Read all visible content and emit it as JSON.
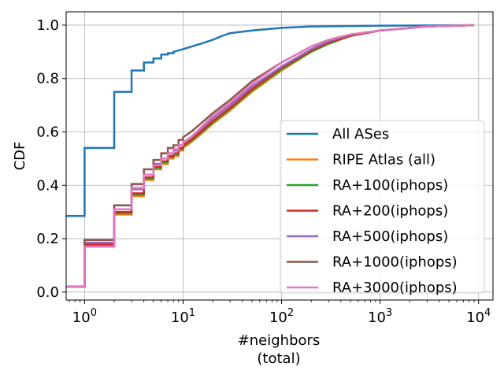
{
  "chart_data": {
    "type": "line",
    "xlabel": "#neighbors",
    "xlabel_line2": "(total)",
    "ylabel": "CDF",
    "xscale": "log",
    "xlim": [
      0.65,
      14000
    ],
    "ylim": [
      -0.03,
      1.05
    ],
    "grid": true,
    "legend_position": "bottom-right",
    "x_ticks": [
      {
        "value": 1,
        "base": "10",
        "exp": "0"
      },
      {
        "value": 10,
        "base": "10",
        "exp": "1"
      },
      {
        "value": 100,
        "base": "10",
        "exp": "2"
      },
      {
        "value": 1000,
        "base": "10",
        "exp": "3"
      },
      {
        "value": 10000,
        "base": "10",
        "exp": "4"
      }
    ],
    "y_ticks": [
      "0.0",
      "0.2",
      "0.4",
      "0.6",
      "0.8",
      "1.0"
    ],
    "series": [
      {
        "name": "All ASes",
        "color": "#1f77b4",
        "points": [
          [
            0.65,
            0.285
          ],
          [
            1,
            0.285
          ],
          [
            1,
            0.54
          ],
          [
            2,
            0.54
          ],
          [
            2,
            0.75
          ],
          [
            3,
            0.75
          ],
          [
            3,
            0.83
          ],
          [
            4,
            0.83
          ],
          [
            4,
            0.86
          ],
          [
            5,
            0.86
          ],
          [
            5,
            0.875
          ],
          [
            6,
            0.875
          ],
          [
            6,
            0.89
          ],
          [
            7,
            0.89
          ],
          [
            7,
            0.895
          ],
          [
            8,
            0.895
          ],
          [
            8,
            0.9
          ],
          [
            10,
            0.91
          ],
          [
            15,
            0.93
          ],
          [
            20,
            0.945
          ],
          [
            25,
            0.96
          ],
          [
            30,
            0.97
          ],
          [
            50,
            0.98
          ],
          [
            100,
            0.99
          ],
          [
            200,
            0.995
          ],
          [
            1000,
            0.998
          ],
          [
            9000,
            1.0
          ]
        ]
      },
      {
        "name": "RIPE Atlas (all)",
        "color": "#ff7f0e",
        "points": [
          [
            0.65,
            0.02
          ],
          [
            1,
            0.02
          ],
          [
            1,
            0.17
          ],
          [
            2,
            0.17
          ],
          [
            2,
            0.29
          ],
          [
            3,
            0.29
          ],
          [
            3,
            0.36
          ],
          [
            4,
            0.36
          ],
          [
            4,
            0.42
          ],
          [
            5,
            0.42
          ],
          [
            5,
            0.46
          ],
          [
            6,
            0.46
          ],
          [
            6,
            0.48
          ],
          [
            7,
            0.48
          ],
          [
            7,
            0.5
          ],
          [
            8,
            0.5
          ],
          [
            8,
            0.51
          ],
          [
            9,
            0.51
          ],
          [
            9,
            0.53
          ],
          [
            10,
            0.53
          ],
          [
            10,
            0.54
          ],
          [
            12,
            0.56
          ],
          [
            15,
            0.59
          ],
          [
            20,
            0.63
          ],
          [
            30,
            0.68
          ],
          [
            50,
            0.75
          ],
          [
            100,
            0.83
          ],
          [
            200,
            0.9
          ],
          [
            300,
            0.93
          ],
          [
            500,
            0.96
          ],
          [
            1000,
            0.98
          ],
          [
            3000,
            0.995
          ],
          [
            9000,
            1.0
          ]
        ]
      },
      {
        "name": "RA+100(iphops)",
        "color": "#2ca02c",
        "points": [
          [
            0.65,
            0.02
          ],
          [
            1,
            0.02
          ],
          [
            1,
            0.175
          ],
          [
            2,
            0.175
          ],
          [
            2,
            0.295
          ],
          [
            3,
            0.295
          ],
          [
            3,
            0.365
          ],
          [
            4,
            0.365
          ],
          [
            4,
            0.425
          ],
          [
            5,
            0.425
          ],
          [
            5,
            0.465
          ],
          [
            6,
            0.465
          ],
          [
            6,
            0.485
          ],
          [
            7,
            0.485
          ],
          [
            7,
            0.505
          ],
          [
            8,
            0.505
          ],
          [
            8,
            0.515
          ],
          [
            9,
            0.515
          ],
          [
            9,
            0.535
          ],
          [
            10,
            0.535
          ],
          [
            10,
            0.545
          ],
          [
            12,
            0.565
          ],
          [
            15,
            0.595
          ],
          [
            20,
            0.635
          ],
          [
            30,
            0.685
          ],
          [
            50,
            0.755
          ],
          [
            100,
            0.835
          ],
          [
            200,
            0.9
          ],
          [
            300,
            0.93
          ],
          [
            500,
            0.96
          ],
          [
            1000,
            0.98
          ],
          [
            3000,
            0.995
          ],
          [
            9000,
            1.0
          ]
        ]
      },
      {
        "name": "RA+200(iphops)",
        "color": "#d62728",
        "points": [
          [
            0.65,
            0.02
          ],
          [
            1,
            0.02
          ],
          [
            1,
            0.18
          ],
          [
            2,
            0.18
          ],
          [
            2,
            0.3
          ],
          [
            3,
            0.3
          ],
          [
            3,
            0.37
          ],
          [
            4,
            0.37
          ],
          [
            4,
            0.43
          ],
          [
            5,
            0.43
          ],
          [
            5,
            0.47
          ],
          [
            6,
            0.47
          ],
          [
            6,
            0.49
          ],
          [
            7,
            0.49
          ],
          [
            7,
            0.51
          ],
          [
            8,
            0.51
          ],
          [
            8,
            0.52
          ],
          [
            9,
            0.52
          ],
          [
            9,
            0.54
          ],
          [
            10,
            0.54
          ],
          [
            10,
            0.55
          ],
          [
            12,
            0.57
          ],
          [
            15,
            0.6
          ],
          [
            20,
            0.64
          ],
          [
            30,
            0.69
          ],
          [
            50,
            0.76
          ],
          [
            100,
            0.84
          ],
          [
            200,
            0.905
          ],
          [
            300,
            0.935
          ],
          [
            500,
            0.96
          ],
          [
            1000,
            0.98
          ],
          [
            3000,
            0.995
          ],
          [
            9000,
            1.0
          ]
        ]
      },
      {
        "name": "RA+500(iphops)",
        "color": "#9467bd",
        "points": [
          [
            0.65,
            0.02
          ],
          [
            1,
            0.02
          ],
          [
            1,
            0.185
          ],
          [
            2,
            0.185
          ],
          [
            2,
            0.31
          ],
          [
            3,
            0.31
          ],
          [
            3,
            0.385
          ],
          [
            4,
            0.385
          ],
          [
            4,
            0.44
          ],
          [
            5,
            0.44
          ],
          [
            5,
            0.48
          ],
          [
            6,
            0.48
          ],
          [
            6,
            0.5
          ],
          [
            7,
            0.5
          ],
          [
            7,
            0.52
          ],
          [
            8,
            0.52
          ],
          [
            8,
            0.53
          ],
          [
            9,
            0.53
          ],
          [
            9,
            0.55
          ],
          [
            10,
            0.55
          ],
          [
            10,
            0.56
          ],
          [
            12,
            0.58
          ],
          [
            15,
            0.61
          ],
          [
            20,
            0.65
          ],
          [
            30,
            0.7
          ],
          [
            50,
            0.77
          ],
          [
            100,
            0.845
          ],
          [
            200,
            0.91
          ],
          [
            300,
            0.94
          ],
          [
            500,
            0.965
          ],
          [
            1000,
            0.98
          ],
          [
            3000,
            0.995
          ],
          [
            9000,
            1.0
          ]
        ]
      },
      {
        "name": "RA+1000(iphops)",
        "color": "#8c564b",
        "points": [
          [
            0.65,
            0.02
          ],
          [
            1,
            0.02
          ],
          [
            1,
            0.195
          ],
          [
            2,
            0.195
          ],
          [
            2,
            0.325
          ],
          [
            3,
            0.325
          ],
          [
            3,
            0.405
          ],
          [
            4,
            0.405
          ],
          [
            4,
            0.46
          ],
          [
            5,
            0.46
          ],
          [
            5,
            0.495
          ],
          [
            6,
            0.495
          ],
          [
            6,
            0.52
          ],
          [
            7,
            0.52
          ],
          [
            7,
            0.54
          ],
          [
            8,
            0.54
          ],
          [
            8,
            0.55
          ],
          [
            9,
            0.55
          ],
          [
            9,
            0.57
          ],
          [
            10,
            0.57
          ],
          [
            10,
            0.58
          ],
          [
            12,
            0.6
          ],
          [
            15,
            0.63
          ],
          [
            20,
            0.67
          ],
          [
            30,
            0.72
          ],
          [
            50,
            0.79
          ],
          [
            100,
            0.86
          ],
          [
            200,
            0.92
          ],
          [
            300,
            0.945
          ],
          [
            500,
            0.965
          ],
          [
            1000,
            0.98
          ],
          [
            3000,
            0.995
          ],
          [
            9000,
            1.0
          ]
        ]
      },
      {
        "name": "RA+3000(iphops)",
        "color": "#e377c2",
        "points": [
          [
            0.65,
            0.02
          ],
          [
            1,
            0.02
          ],
          [
            1,
            0.17
          ],
          [
            2,
            0.17
          ],
          [
            2,
            0.31
          ],
          [
            3,
            0.31
          ],
          [
            3,
            0.39
          ],
          [
            4,
            0.39
          ],
          [
            4,
            0.44
          ],
          [
            5,
            0.44
          ],
          [
            5,
            0.475
          ],
          [
            6,
            0.475
          ],
          [
            6,
            0.5
          ],
          [
            7,
            0.5
          ],
          [
            7,
            0.52
          ],
          [
            8,
            0.52
          ],
          [
            8,
            0.535
          ],
          [
            9,
            0.535
          ],
          [
            9,
            0.55
          ],
          [
            10,
            0.55
          ],
          [
            10,
            0.56
          ],
          [
            12,
            0.58
          ],
          [
            15,
            0.615
          ],
          [
            20,
            0.66
          ],
          [
            30,
            0.71
          ],
          [
            50,
            0.78
          ],
          [
            100,
            0.86
          ],
          [
            200,
            0.92
          ],
          [
            300,
            0.945
          ],
          [
            500,
            0.965
          ],
          [
            1000,
            0.98
          ],
          [
            3000,
            0.995
          ],
          [
            9000,
            1.0
          ]
        ]
      }
    ]
  }
}
